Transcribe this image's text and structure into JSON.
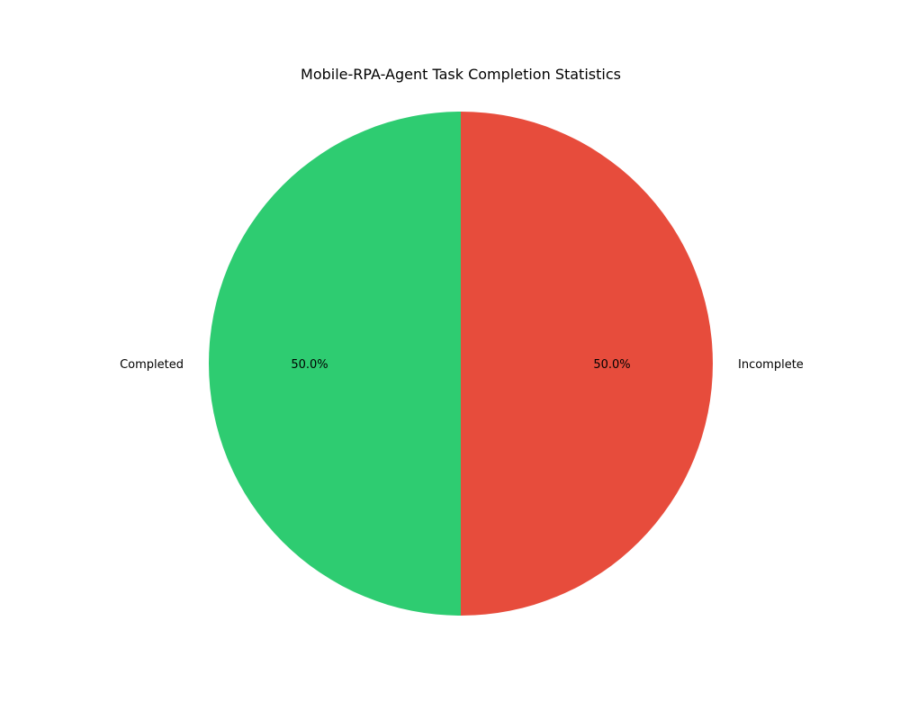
{
  "chart_data": {
    "type": "pie",
    "title": "Mobile-RPA-Agent Task Completion Statistics",
    "categories": [
      "Completed",
      "Incomplete"
    ],
    "values": [
      50.0,
      50.0
    ],
    "percent_labels": [
      "50.0%",
      "50.0%"
    ],
    "colors": [
      "#2ecc71",
      "#e74c3c"
    ],
    "start_angle_deg": 90,
    "direction": "counterclockwise",
    "legend": "none"
  }
}
